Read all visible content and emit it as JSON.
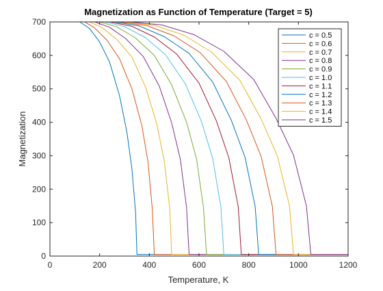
{
  "chart_data": {
    "type": "line",
    "title": "Magnetization as Function of Temperature (Target = 5)",
    "xlabel": "Temperature, K",
    "ylabel": "Magnetization",
    "xlim": [
      0,
      1200
    ],
    "ylim": [
      0,
      700
    ],
    "xticks": [
      0,
      200,
      400,
      600,
      800,
      1000,
      1200
    ],
    "yticks": [
      0,
      100,
      200,
      300,
      400,
      500,
      600,
      700
    ],
    "grid": false,
    "legend_position": "top-right",
    "baseline_value": 5,
    "series": [
      {
        "name": "c = 0.5",
        "color": "#0072BD",
        "x": [
          0,
          120,
          160,
          200,
          240,
          280,
          310,
          330,
          345,
          350,
          1200
        ],
        "y": [
          700,
          700,
          680,
          640,
          580,
          480,
          370,
          260,
          130,
          5,
          5
        ]
      },
      {
        "name": "c = 0.6",
        "color": "#D95319",
        "x": [
          0,
          140,
          180,
          230,
          280,
          330,
          370,
          395,
          412,
          420,
          1200
        ],
        "y": [
          700,
          700,
          682,
          645,
          590,
          500,
          390,
          280,
          140,
          5,
          5
        ]
      },
      {
        "name": "c = 0.7",
        "color": "#EDB120",
        "x": [
          0,
          160,
          210,
          270,
          330,
          385,
          430,
          460,
          482,
          490,
          1200
        ],
        "y": [
          700,
          700,
          683,
          647,
          595,
          505,
          395,
          285,
          145,
          5,
          5
        ]
      },
      {
        "name": "c = 0.8",
        "color": "#7E2F8E",
        "x": [
          0,
          180,
          240,
          305,
          375,
          440,
          490,
          525,
          550,
          560,
          1200
        ],
        "y": [
          700,
          700,
          684,
          650,
          597,
          508,
          398,
          288,
          145,
          5,
          5
        ]
      },
      {
        "name": "c = 0.9",
        "color": "#77AC30",
        "x": [
          0,
          200,
          270,
          345,
          420,
          490,
          550,
          590,
          618,
          630,
          1200
        ],
        "y": [
          700,
          700,
          685,
          652,
          600,
          512,
          400,
          290,
          145,
          5,
          5
        ]
      },
      {
        "name": "c = 1.0",
        "color": "#4DBEEE",
        "x": [
          0,
          220,
          300,
          385,
          465,
          545,
          610,
          655,
          688,
          700,
          1200
        ],
        "y": [
          700,
          700,
          686,
          653,
          602,
          515,
          402,
          292,
          146,
          5,
          5
        ]
      },
      {
        "name": "c = 1.1",
        "color": "#A2142F",
        "x": [
          0,
          240,
          330,
          420,
          510,
          600,
          670,
          720,
          758,
          770,
          1200
        ],
        "y": [
          700,
          700,
          687,
          655,
          604,
          517,
          404,
          294,
          147,
          5,
          5
        ]
      },
      {
        "name": "c = 1.2",
        "color": "#0072BD",
        "x": [
          0,
          260,
          360,
          460,
          560,
          655,
          730,
          785,
          826,
          840,
          1200
        ],
        "y": [
          700,
          700,
          688,
          656,
          606,
          520,
          406,
          296,
          148,
          5,
          5
        ]
      },
      {
        "name": "c = 1.3",
        "color": "#D95319",
        "x": [
          0,
          280,
          390,
          500,
          605,
          710,
          790,
          850,
          895,
          910,
          1200
        ],
        "y": [
          700,
          700,
          689,
          658,
          608,
          522,
          408,
          298,
          149,
          5,
          5
        ]
      },
      {
        "name": "c = 1.4",
        "color": "#EDB120",
        "x": [
          0,
          300,
          420,
          540,
          650,
          765,
          850,
          915,
          964,
          980,
          1200
        ],
        "y": [
          700,
          700,
          690,
          660,
          610,
          525,
          410,
          300,
          150,
          5,
          5
        ]
      },
      {
        "name": "c = 1.5",
        "color": "#7E2F8E",
        "x": [
          0,
          320,
          450,
          580,
          700,
          820,
          910,
          980,
          1032,
          1050,
          1200
        ],
        "y": [
          700,
          700,
          691,
          662,
          612,
          528,
          412,
          302,
          150,
          5,
          5
        ]
      }
    ]
  }
}
